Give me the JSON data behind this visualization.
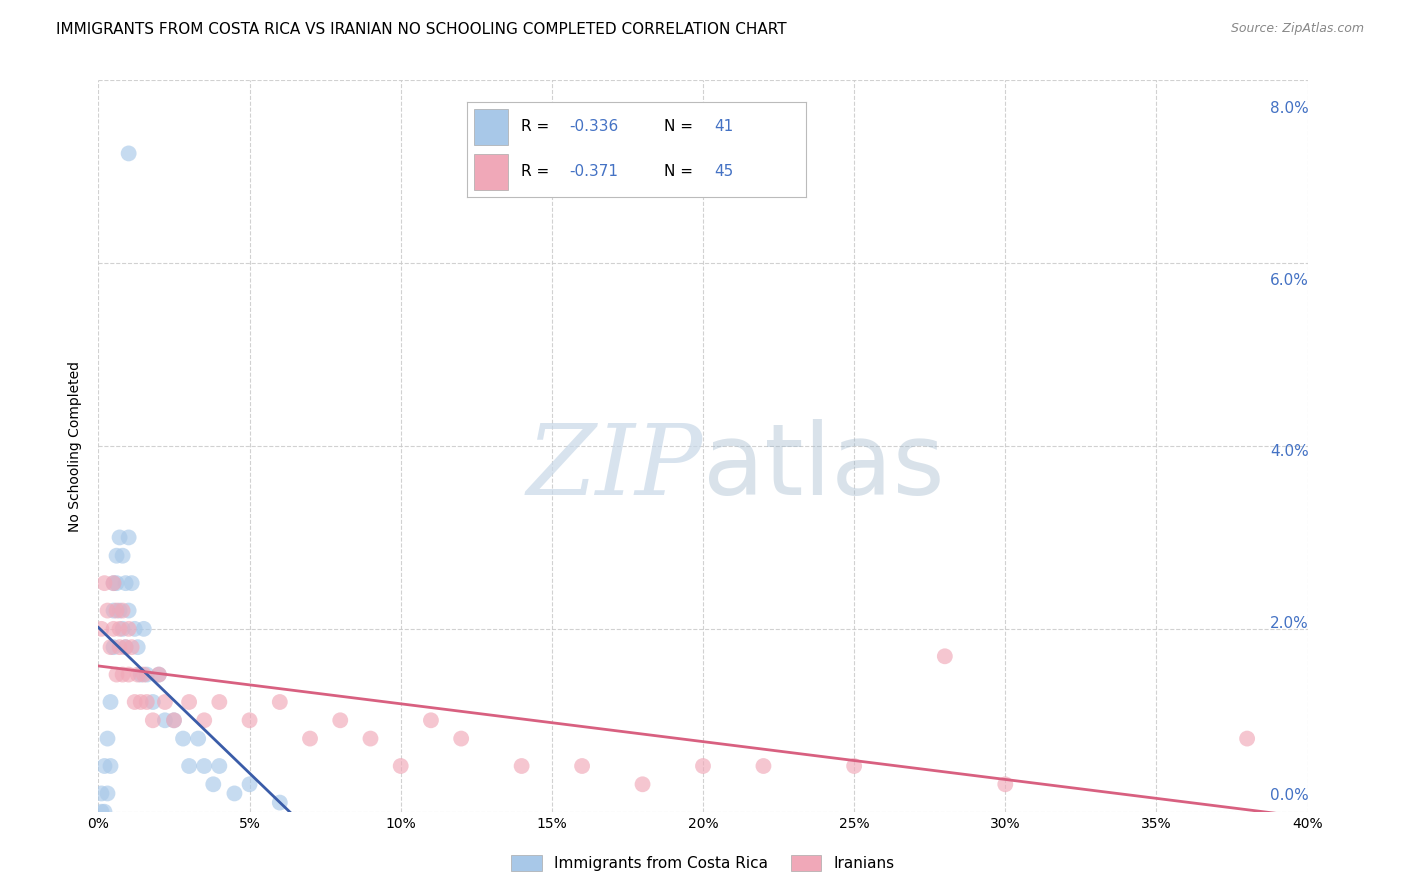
{
  "title": "IMMIGRANTS FROM COSTA RICA VS IRANIAN NO SCHOOLING COMPLETED CORRELATION CHART",
  "source": "Source: ZipAtlas.com",
  "ylabel": "No Schooling Completed",
  "xlim": [
    0,
    0.4
  ],
  "ylim": [
    0,
    0.08
  ],
  "xticks": [
    0.0,
    0.05,
    0.1,
    0.15,
    0.2,
    0.25,
    0.3,
    0.35,
    0.4
  ],
  "yticks": [
    0.0,
    0.02,
    0.04,
    0.06,
    0.08
  ],
  "legend_R1": "-0.336",
  "legend_N1": "41",
  "legend_R2": "-0.371",
  "legend_N2": "45",
  "label1": "Immigrants from Costa Rica",
  "label2": "Iranians",
  "blue_scatter_color": "#a8c8e8",
  "pink_scatter_color": "#f0a8b8",
  "blue_line_color": "#3a5ca8",
  "pink_line_color": "#d86080",
  "legend_text_color": "#4472C4",
  "background_color": "#ffffff",
  "grid_color": "#cccccc",
  "cr_x": [
    0.001,
    0.001,
    0.002,
    0.002,
    0.003,
    0.003,
    0.004,
    0.004,
    0.005,
    0.005,
    0.005,
    0.006,
    0.006,
    0.007,
    0.007,
    0.008,
    0.008,
    0.009,
    0.009,
    0.01,
    0.01,
    0.011,
    0.012,
    0.013,
    0.014,
    0.015,
    0.016,
    0.018,
    0.02,
    0.022,
    0.025,
    0.028,
    0.03,
    0.033,
    0.035,
    0.038,
    0.04,
    0.045,
    0.05,
    0.06,
    0.01
  ],
  "cr_y": [
    0.0,
    0.002,
    0.0,
    0.005,
    0.002,
    0.008,
    0.005,
    0.012,
    0.018,
    0.022,
    0.025,
    0.028,
    0.025,
    0.03,
    0.022,
    0.028,
    0.02,
    0.025,
    0.018,
    0.03,
    0.022,
    0.025,
    0.02,
    0.018,
    0.015,
    0.02,
    0.015,
    0.012,
    0.015,
    0.01,
    0.01,
    0.008,
    0.005,
    0.008,
    0.005,
    0.003,
    0.005,
    0.002,
    0.003,
    0.001,
    0.072
  ],
  "iran_x": [
    0.001,
    0.002,
    0.003,
    0.004,
    0.005,
    0.005,
    0.006,
    0.006,
    0.007,
    0.007,
    0.008,
    0.008,
    0.009,
    0.01,
    0.01,
    0.011,
    0.012,
    0.013,
    0.014,
    0.015,
    0.016,
    0.018,
    0.02,
    0.022,
    0.025,
    0.03,
    0.035,
    0.04,
    0.05,
    0.06,
    0.07,
    0.08,
    0.09,
    0.1,
    0.11,
    0.12,
    0.14,
    0.16,
    0.18,
    0.2,
    0.22,
    0.25,
    0.28,
    0.3,
    0.38
  ],
  "iran_y": [
    0.02,
    0.025,
    0.022,
    0.018,
    0.025,
    0.02,
    0.022,
    0.015,
    0.02,
    0.018,
    0.015,
    0.022,
    0.018,
    0.02,
    0.015,
    0.018,
    0.012,
    0.015,
    0.012,
    0.015,
    0.012,
    0.01,
    0.015,
    0.012,
    0.01,
    0.012,
    0.01,
    0.012,
    0.01,
    0.012,
    0.008,
    0.01,
    0.008,
    0.005,
    0.01,
    0.008,
    0.005,
    0.005,
    0.003,
    0.005,
    0.005,
    0.005,
    0.017,
    0.003,
    0.008
  ]
}
